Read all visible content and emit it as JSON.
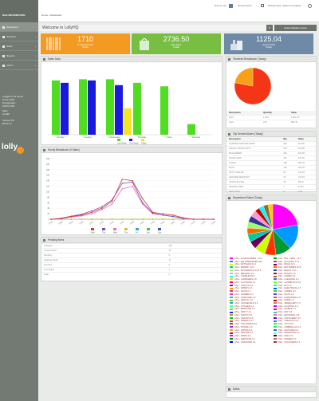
{
  "app": {
    "brand": "MAX INFORMATION",
    "breadcrumb": "Home › Dashboard",
    "help": "How to use",
    "recent": "Recent Items",
    "account": "Mohammed • Sales Consultant",
    "settings": "Settings"
  },
  "sidebar": {
    "items": [
      {
        "label": "Dashboard",
        "active": true
      },
      {
        "label": "Products",
        "chevron": "›"
      },
      {
        "label": "Stock",
        "chevron": "›"
      },
      {
        "label": "Reports",
        "chevron": "›"
      },
      {
        "label": "Admin",
        "chevron": "›"
      }
    ],
    "info": [
      "Logged in as sheryl",
      "6 Feb 2019",
      "Grangetown",
      "NIPZ4 10%"
    ],
    "info2": [
      "Main",
      "Cardiff"
    ],
    "info3": [
      "Version 6.5",
      "Build 3.2"
    ],
    "logo": "lolly"
  },
  "main": {
    "title": "Welcome to LollyHQ",
    "refresh_icon": "refresh-icon",
    "selector": "Select Retailer stores"
  },
  "stats": [
    {
      "value": "1710",
      "label": "# Transactions",
      "sub": "Today",
      "color": "#f39a23"
    },
    {
      "value": "2736.50",
      "label": "Net Sales",
      "sub": "Today",
      "color": "#78be43"
    },
    {
      "value": "1125.04",
      "label": "Gross Profit",
      "sub": "Today",
      "color": "#6f8aa6"
    }
  ],
  "panels": {
    "sales_chart": "Sales Data",
    "hourly": "Hourly Breakdown (# Sales)",
    "payments": "Tendered Breakdown (Today)",
    "staff": "Top Servers/Users (Today)",
    "departments": "Department Sales (Today)",
    "lowstock": "Pending Items",
    "bottom": "Notes"
  },
  "chart_data": [
    {
      "type": "bar",
      "title": "Sales Data",
      "categories": [
        "Monday",
        "Tuesday",
        "Wednesday",
        "Thursday",
        "Friday",
        "Saturday"
      ],
      "series": [
        {
          "name": "Last Week",
          "values": [
            2300,
            2350,
            2350,
            2200,
            2050,
            450
          ],
          "color": "#4fdc21"
        },
        {
          "name": "This Week",
          "values": [
            2200,
            2300,
            2100,
            0,
            0,
            0
          ],
          "color": "#1a1adc"
        },
        {
          "name": "Today",
          "values": [
            0,
            0,
            1120,
            0,
            0,
            0
          ],
          "color": "#f2e624"
        }
      ],
      "ylim": [
        0,
        2600
      ]
    },
    {
      "type": "line",
      "title": "Hourly Breakdown (# Sales)",
      "categories": [
        "07:00",
        "08:00",
        "09:00",
        "10:00",
        "11:00",
        "12:00",
        "13:00",
        "14:00",
        "15:00",
        "16:00",
        "17:00",
        "18:00",
        "19:00",
        "20:00",
        "21:00",
        "22:00",
        "23:00"
      ],
      "series": [
        {
          "name": "Mon",
          "values": [
            0,
            3,
            10,
            15,
            25,
            40,
            65,
            145,
            140,
            75,
            25,
            20,
            15,
            5,
            0,
            0,
            0
          ],
          "color": "#cf3a3a"
        },
        {
          "name": "Tue",
          "values": [
            0,
            4,
            11,
            18,
            30,
            45,
            70,
            130,
            135,
            60,
            22,
            15,
            10,
            4,
            0,
            0,
            0
          ],
          "color": "#7b4fae"
        },
        {
          "name": "Wed",
          "values": [
            0,
            2,
            8,
            12,
            20,
            35,
            55,
            110,
            120,
            55,
            20,
            15,
            10,
            2,
            0,
            0,
            0
          ],
          "color": "#e36fd1"
        },
        {
          "name": "Thu",
          "values": [
            0,
            0,
            0,
            0,
            0,
            0,
            0,
            0,
            0,
            0,
            0,
            0,
            0,
            0,
            0,
            0,
            0
          ],
          "color": "#d8c52e"
        },
        {
          "name": "Fri",
          "values": [
            0,
            0,
            0,
            0,
            0,
            0,
            0,
            0,
            0,
            0,
            0,
            0,
            0,
            0,
            0,
            0,
            0
          ],
          "color": "#36a3d9"
        },
        {
          "name": "Sat",
          "values": [
            0,
            0,
            0,
            0,
            0,
            0,
            0,
            0,
            0,
            0,
            0,
            0,
            0,
            0,
            0,
            0,
            0
          ],
          "color": "#53b953"
        },
        {
          "name": "Sun",
          "values": [
            0,
            0,
            0,
            0,
            0,
            0,
            0,
            0,
            0,
            0,
            0,
            0,
            0,
            0,
            0,
            0,
            0
          ],
          "color": "#2f5fb3"
        }
      ],
      "ylim": [
        0,
        220
      ],
      "yticks": [
        0,
        20,
        40,
        60,
        80,
        100,
        120,
        140,
        160,
        180,
        200,
        220
      ]
    },
    {
      "type": "pie",
      "title": "Tendered Breakdown (Today)",
      "slices": [
        {
          "label": "Cash",
          "value": 78,
          "color": "#f43616"
        },
        {
          "label": "Card",
          "value": 22,
          "color": "#f7a018"
        }
      ]
    },
    {
      "type": "pie",
      "title": "Department Sales (Today)",
      "slices": [
        {
          "label": "ASH HEALTH",
          "value": 22,
          "color": "#ff00ff"
        },
        {
          "label": "ASH ACCESSORIES",
          "value": 16,
          "color": "#0099ff"
        },
        {
          "label": "ASH ARTICLES",
          "value": 10,
          "color": "#009933"
        },
        {
          "label": "ASH BAGS",
          "value": 7,
          "color": "#ff3300"
        },
        {
          "label": "ASH BATTERIES",
          "value": 7,
          "color": "#ccff00"
        },
        {
          "label": "ASH BOOKS",
          "value": 5,
          "color": "#660066"
        },
        {
          "label": "ASH CANDLES",
          "value": 5,
          "color": "#00cc99"
        },
        {
          "label": "ASH CARDS",
          "value": 4,
          "color": "#ff6600"
        },
        {
          "label": "ASH CLOTHING",
          "value": 4,
          "color": "#99ff66"
        },
        {
          "label": "ASH DRINKS",
          "value": 4,
          "color": "#333399"
        },
        {
          "label": "ASH FOOD",
          "value": 4,
          "color": "#ff99cc"
        },
        {
          "label": "ASH GIFTS",
          "value": 3,
          "color": "#cc0000"
        },
        {
          "label": "ASH HOME",
          "value": 3,
          "color": "#00ffff"
        },
        {
          "label": "ASH JEWELLERY",
          "value": 3,
          "color": "#996633"
        },
        {
          "label": "OTHER",
          "value": 3,
          "color": "#ffcc00"
        }
      ]
    }
  ],
  "payment_table": {
    "headers": [
      "Description",
      "Quantity",
      "Value"
    ],
    "rows": [
      [
        "Cash",
        "1,234",
        "1,842.10"
      ],
      [
        "Card",
        "476",
        "894.40"
      ]
    ]
  },
  "staff_table": {
    "headers": [
      "Description",
      "Qty",
      "Value"
    ],
    "rows": [
      [
        "CASHIER GRANGETOWN",
        "432",
        "612.30"
      ],
      [
        "SALES CONSULTANT",
        "314",
        "491.80"
      ],
      [
        "MOHAMMED",
        "290",
        "422.60"
      ],
      [
        "SALES GMX",
        "201",
        "311.90"
      ],
      [
        "TUFAN",
        "188",
        "280.20"
      ],
      [
        "ZAYD",
        "120",
        "160.45"
      ],
      [
        "LETTY WALES",
        "96",
        "142.10"
      ],
      [
        "LEISURE SERVICES",
        "44",
        "120.15"
      ],
      [
        "JASON KAYNE",
        "18",
        "98.00"
      ],
      [
        "SAMPLE ITEM",
        "7",
        "61.00"
      ],
      [
        "NOT SOLD",
        "0",
        "0.00"
      ]
    ]
  },
  "lowstock_table": {
    "rows": [
      [
        "Category",
        "125"
      ],
      [
        "Lowest Stock",
        "10"
      ],
      [
        "Pending",
        "5"
      ],
      [
        "Awaiting Stock",
        "11"
      ],
      [
        "Overdue",
        "2"
      ],
      [
        "Incomplete",
        "1"
      ],
      [
        "Draft",
        "2"
      ]
    ]
  },
  "dept_legend": [
    [
      "ASH - ACCESSORIES - 34.2",
      "#ff00ff"
    ],
    [
      "ASH - 90's - NEW - 14.2",
      "#009933"
    ],
    [
      "ASH - AIR FRESHENER 26.1",
      "#0099ff"
    ],
    [
      "ASH - ALCOHOL 17.3",
      "#ff3300"
    ],
    [
      "ASH - ARTICLES 31.4",
      "#ccff00"
    ],
    [
      "ASH - BAGS 12.1",
      "#660066"
    ],
    [
      "ASH - BAKERY 10.3",
      "#00cc99"
    ],
    [
      "ASH - BATTERIES 10.8",
      "#ff6600"
    ],
    [
      "ASH - BATTERIES (LG) 8.2",
      "#99ff66"
    ],
    [
      "ASH - BEAUTY 8.0",
      "#333399"
    ],
    [
      "ASH - BEDDING 6.2",
      "#ff99cc"
    ],
    [
      "ASH - BOOKS 5.9",
      "#cc0000"
    ],
    [
      "ASH - CANDLES 5.5",
      "#00ffff"
    ],
    [
      "ASH - CARDS 5.0",
      "#996633"
    ],
    [
      "ASH - CHARGERS 4.8",
      "#ffcc00"
    ],
    [
      "ASH - CLEANING 4.4",
      "#3366ff"
    ],
    [
      "ASH - CLOTHING 4.1",
      "#ff0066"
    ],
    [
      "ASH - COSMETICS 3.9",
      "#66ff33"
    ],
    [
      "ASH - CRAFTS 3.6",
      "#9900cc"
    ],
    [
      "ASH - DIY 3.3",
      "#00ff99"
    ],
    [
      "ASH - DRINKS 3.1",
      "#ff9900"
    ],
    [
      "ASH - ELECTRICAL 2.9",
      "#0066cc"
    ],
    [
      "ASH - FOOD 2.7",
      "#cc3399"
    ],
    [
      "ASH - GAMES 2.5",
      "#33cc33"
    ],
    [
      "ASH - GARDEN 2.4",
      "#ff3399"
    ],
    [
      "ASH - GIFTS 2.2",
      "#6633ff"
    ],
    [
      "ASH - HAIRCARE 2.0",
      "#00cccc"
    ],
    [
      "ASH - HARDWARE 1.9",
      "#cc6600"
    ],
    [
      "ASH - HEALTH 1.8",
      "#66cc00"
    ],
    [
      "ASH - HOME 1.7",
      "#990033"
    ],
    [
      "ASH - HOUSEHOLD 1.6",
      "#3399ff"
    ],
    [
      "ASH - JEWELLERY 1.5",
      "#ff6633"
    ],
    [
      "ASH - KITCHEN 1.4",
      "#33ffcc"
    ],
    [
      "ASH - LIGHTING 1.3",
      "#cc00ff"
    ],
    [
      "ASH - MEDICINE 1.2",
      "#99cc00"
    ],
    [
      "ASH - MOBILE 1.1",
      "#ff0033"
    ],
    [
      "ASH - PARTY 1.0",
      "#0033ff"
    ],
    [
      "ASH - PET 0.9",
      "#33cc99"
    ],
    [
      "ASH - PHOTO 0.9",
      "#cc9900"
    ],
    [
      "ASH - SEASONAL 0.8",
      "#ff66cc"
    ],
    [
      "ASH - SNACKS 0.8",
      "#00cc33"
    ],
    [
      "ASH - STATIONERY 0.7",
      "#6600cc"
    ],
    [
      "ASH - SWEETS 0.7",
      "#ff3300"
    ],
    [
      "ASH - TOBACCO 0.6",
      "#0099cc"
    ],
    [
      "ASH - TOILETRIES 0.6",
      "#cc3300"
    ],
    [
      "ASH - TOYS 0.5",
      "#33ff00"
    ],
    [
      "ASH - TRAVEL 0.5",
      "#9933ff"
    ],
    [
      "ASH - UMBRELLAS 0.4",
      "#00ff66"
    ],
    [
      "ASH - VAPING 0.4",
      "#ff9933"
    ],
    [
      "ASH - WATCHES 0.3",
      "#3366cc"
    ],
    [
      "ASH - WINTER 0.3",
      "#cc0066"
    ],
    [
      "ASH - WRAPPING 0.2",
      "#66ffcc"
    ],
    [
      "ASH - NEWS 0.2",
      "#ff00cc"
    ],
    [
      "ASH - MISC 0.1",
      "#000099"
    ],
    [
      "ASH - SERVICES 0.1",
      "#009900"
    ],
    [
      "ASH - SPARES 0.1",
      "#cc6633"
    ],
    [
      "ASH - UNKNOWN 0.1",
      "#0000ff"
    ],
    [
      "ASH - VOUCHERS 0.1",
      "#993366"
    ]
  ]
}
